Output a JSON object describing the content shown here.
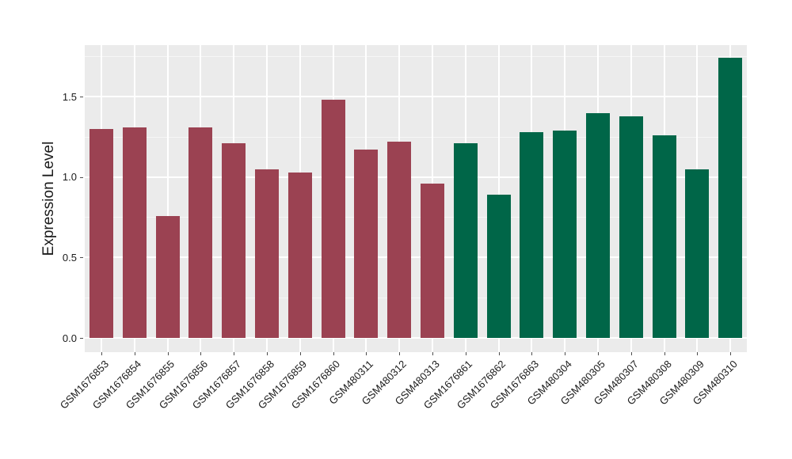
{
  "figure": {
    "background": "#FFFFFF",
    "panel_background": "#EBEBEB",
    "grid_major_color": "#FFFFFF",
    "grid_minor_color": "rgba(255,255,255,0.55)",
    "tick_color": "#4D4D4D",
    "text_color": "#1A1A1A"
  },
  "chart_data": {
    "type": "bar",
    "title": "",
    "xlabel": "",
    "ylabel": "Expression Level",
    "ylim": [
      0,
      1.82
    ],
    "yticks": [
      "0.0",
      "0.5",
      "1.0",
      "1.5"
    ],
    "ytick_values": [
      0.0,
      0.5,
      1.0,
      1.5
    ],
    "minor_gridlines": [
      0.25,
      0.75,
      1.25,
      1.75
    ],
    "grid": true,
    "legend_position": "none",
    "x_label_angle": 45,
    "categories": [
      "GSM1676853",
      "GSM1676854",
      "GSM1676855",
      "GSM1676856",
      "GSM1676857",
      "GSM1676858",
      "GSM1676859",
      "GSM1676860",
      "GSM480311",
      "GSM480312",
      "GSM480313",
      "GSM1676861",
      "GSM1676862",
      "GSM1676863",
      "GSM480304",
      "GSM480305",
      "GSM480307",
      "GSM480308",
      "GSM480309",
      "GSM480310"
    ],
    "values": [
      1.3,
      1.31,
      0.76,
      1.31,
      1.21,
      1.05,
      1.03,
      1.48,
      1.17,
      1.22,
      0.96,
      1.21,
      0.89,
      1.28,
      1.29,
      1.4,
      1.38,
      1.26,
      1.05,
      1.74
    ],
    "group_colors": {
      "left_group": "#9B4252",
      "right_group": "#006648"
    },
    "bar_colors": [
      "#9B4252",
      "#9B4252",
      "#9B4252",
      "#9B4252",
      "#9B4252",
      "#9B4252",
      "#9B4252",
      "#9B4252",
      "#9B4252",
      "#9B4252",
      "#9B4252",
      "#006648",
      "#006648",
      "#006648",
      "#006648",
      "#006648",
      "#006648",
      "#006648",
      "#006648",
      "#006648"
    ]
  }
}
